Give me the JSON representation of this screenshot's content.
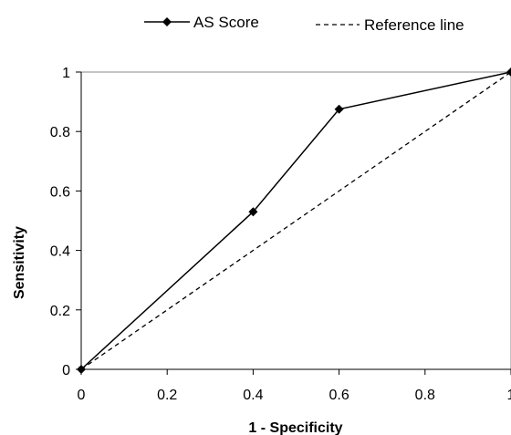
{
  "chart_data": {
    "type": "line",
    "xlabel": "1 - Specificity",
    "ylabel": "Sensitivity",
    "xlim": [
      0,
      1
    ],
    "ylim": [
      0,
      1
    ],
    "x_ticks": [
      0,
      0.2,
      0.4,
      0.6,
      0.8,
      1
    ],
    "y_ticks": [
      0,
      0.2,
      0.4,
      0.6,
      0.8,
      1
    ],
    "x_tick_labels": [
      "0",
      "0.2",
      "0.4",
      "0.6",
      "0.8",
      "1"
    ],
    "y_tick_labels": [
      "0",
      "0.2",
      "0.4",
      "0.6",
      "0.8",
      "1"
    ],
    "grid": false,
    "legend_position": "top",
    "series": [
      {
        "name": "AS Score",
        "style": "solid-with-diamond-markers",
        "color": "#000000",
        "x": [
          0,
          0.4,
          0.6,
          1
        ],
        "y": [
          0,
          0.53,
          0.875,
          1
        ]
      },
      {
        "name": "Reference line",
        "style": "dashed",
        "color": "#000000",
        "x": [
          0,
          1
        ],
        "y": [
          0,
          1
        ]
      }
    ]
  }
}
